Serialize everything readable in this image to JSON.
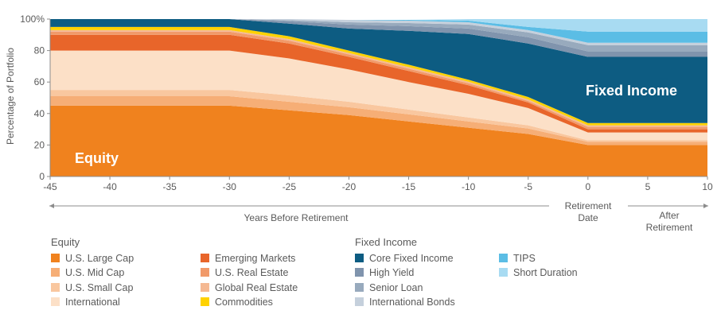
{
  "chart_data": {
    "type": "area",
    "stacked": true,
    "ylabel": "Percentage of Portfolio",
    "ylim": [
      0,
      100
    ],
    "y_ticks": [
      "0",
      "20",
      "40",
      "60",
      "80",
      "100%"
    ],
    "x": [
      -45,
      -30,
      -25,
      -20,
      -15,
      -10,
      -5,
      0,
      10
    ],
    "x_ticks": [
      "-45",
      "-40",
      "-35",
      "-30",
      "-25",
      "-20",
      "-15",
      "-10",
      "-5",
      "0",
      "5",
      "10"
    ],
    "x_annotations": {
      "before": "Years Before Retirement",
      "retirement": "Retirement Date",
      "after": "After Retirement"
    },
    "area_labels": {
      "equity": "Equity",
      "fixed_income": "Fixed Income"
    },
    "series": [
      {
        "name": "U.S. Large Cap",
        "color": "#f0821e",
        "values": [
          45,
          45,
          42,
          39,
          35,
          31,
          27,
          20,
          20
        ]
      },
      {
        "name": "U.S. Mid Cap",
        "color": "#f6ae76",
        "values": [
          6,
          6,
          5.5,
          5,
          4.5,
          4,
          3.5,
          2,
          2
        ]
      },
      {
        "name": "U.S. Small Cap",
        "color": "#f9c79f",
        "values": [
          4,
          4,
          4,
          3.5,
          3,
          2.5,
          2,
          1,
          1
        ]
      },
      {
        "name": "International",
        "color": "#fce0c7",
        "values": [
          25,
          25,
          23.5,
          20.5,
          17.5,
          15,
          11,
          5,
          5
        ]
      },
      {
        "name": "Emerging Markets",
        "color": "#e8652a",
        "values": [
          10,
          10,
          9.5,
          8,
          7,
          5.5,
          3.5,
          2,
          2
        ]
      },
      {
        "name": "U.S. Real Estate",
        "color": "#f19a6a",
        "values": [
          2,
          2,
          1.8,
          1.5,
          1.5,
          1.2,
          1,
          1.5,
          1.5
        ]
      },
      {
        "name": "Global Real Estate",
        "color": "#f5b993",
        "values": [
          1,
          1,
          1,
          1,
          1,
          1,
          1,
          1,
          1
        ]
      },
      {
        "name": "Commodities",
        "color": "#ffd200",
        "values": [
          2,
          2,
          1.8,
          1.5,
          1.5,
          1.3,
          1.5,
          1.5,
          1.5
        ]
      },
      {
        "name": "Core Fixed Income",
        "color": "#0d5c82",
        "values": [
          5,
          5,
          8,
          14,
          21.5,
          29,
          34,
          42,
          42
        ]
      },
      {
        "name": "High Yield",
        "color": "#8094ad",
        "values": [
          0,
          0,
          1.5,
          2.5,
          3,
          3.5,
          4,
          3.5,
          3.5
        ]
      },
      {
        "name": "Senior Loan",
        "color": "#98aabd",
        "values": [
          0,
          0,
          0.7,
          1.5,
          2,
          2.5,
          3,
          4,
          4
        ]
      },
      {
        "name": "International Bonds",
        "color": "#c5d0dc",
        "values": [
          0,
          0,
          0.7,
          1.5,
          1.5,
          1.5,
          1.5,
          1.5,
          1.5
        ]
      },
      {
        "name": "TIPS",
        "color": "#5bbde5",
        "values": [
          0,
          0,
          0,
          0,
          0.5,
          1,
          2,
          7,
          7
        ]
      },
      {
        "name": "Short Duration",
        "color": "#a8dbf2",
        "values": [
          0,
          0,
          0,
          0,
          0,
          1,
          5,
          8,
          8
        ]
      }
    ]
  },
  "legend": {
    "equity_title": "Equity",
    "fixed_income_title": "Fixed Income"
  }
}
